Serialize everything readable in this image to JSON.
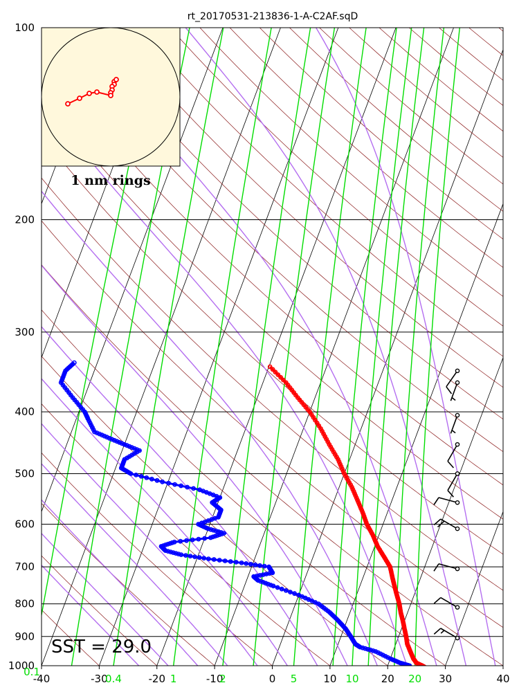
{
  "chart_data": {
    "type": "skew-t",
    "title": "rt_20170531-213836-1-A-C2AF.sqD",
    "xlim": [
      -40,
      40
    ],
    "ylim": [
      1000,
      100
    ],
    "y_scale": "log",
    "grid": true,
    "x_ticks": [
      "-40",
      "-30",
      "-20",
      "-10",
      "0",
      "10",
      "20",
      "30",
      "40"
    ],
    "y_ticks": [
      "100",
      "200",
      "300",
      "400",
      "500",
      "600",
      "700",
      "800",
      "900",
      "1000"
    ],
    "mixing_ratio_labels": [
      "0.1",
      "0.4",
      "1",
      "2",
      "5",
      "10",
      "20"
    ],
    "mixing_ratio_values": [
      0.1,
      0.4,
      1,
      2,
      5,
      10,
      20
    ],
    "annotation": "SST = 29.0",
    "hodograph_label": "1 nm rings",
    "colors": {
      "temperature": "#ff0000",
      "dewpoint": "#0000ff",
      "mixing_ratio": "#00dd00",
      "moist_adiabat": "#b46ef0",
      "dry_adiabat": "#8b1a1a",
      "isotherm": "#000000",
      "hodo_bg": "#fff8dc"
    },
    "series": [
      {
        "name": "temperature",
        "points": [
          [
            1010,
            27
          ],
          [
            1000,
            26
          ],
          [
            990,
            24.8
          ],
          [
            975,
            24
          ],
          [
            950,
            23
          ],
          [
            925,
            22
          ],
          [
            900,
            21.3
          ],
          [
            875,
            20.5
          ],
          [
            850,
            19.7
          ],
          [
            825,
            18.8
          ],
          [
            800,
            18
          ],
          [
            775,
            17
          ],
          [
            750,
            16
          ],
          [
            725,
            15
          ],
          [
            700,
            14
          ],
          [
            675,
            12.3
          ],
          [
            650,
            10.5
          ],
          [
            625,
            9
          ],
          [
            600,
            7.2
          ],
          [
            575,
            5.7
          ],
          [
            550,
            4
          ],
          [
            525,
            2.2
          ],
          [
            500,
            0
          ],
          [
            475,
            -2
          ],
          [
            450,
            -4.5
          ],
          [
            425,
            -7
          ],
          [
            400,
            -10
          ],
          [
            380,
            -13
          ],
          [
            360,
            -16
          ],
          [
            340,
            -19.8
          ]
        ]
      },
      {
        "name": "dewpoint",
        "points": [
          [
            1010,
            24
          ],
          [
            1000,
            23.8
          ],
          [
            990,
            22
          ],
          [
            975,
            20
          ],
          [
            950,
            17
          ],
          [
            935,
            14
          ],
          [
            925,
            13
          ],
          [
            900,
            11.7
          ],
          [
            875,
            10.3
          ],
          [
            850,
            8.5
          ],
          [
            825,
            6.5
          ],
          [
            800,
            4
          ],
          [
            775,
            0
          ],
          [
            750,
            -5
          ],
          [
            735,
            -8
          ],
          [
            725,
            -9
          ],
          [
            715,
            -6
          ],
          [
            700,
            -7
          ],
          [
            690,
            -12
          ],
          [
            680,
            -18
          ],
          [
            670,
            -23
          ],
          [
            660,
            -26
          ],
          [
            650,
            -27
          ],
          [
            640,
            -25
          ],
          [
            630,
            -19
          ],
          [
            620,
            -17
          ],
          [
            610,
            -20
          ],
          [
            600,
            -22
          ],
          [
            585,
            -19
          ],
          [
            570,
            -19
          ],
          [
            555,
            -21
          ],
          [
            545,
            -20
          ],
          [
            530,
            -24
          ],
          [
            515,
            -31
          ],
          [
            500,
            -37
          ],
          [
            490,
            -39
          ],
          [
            475,
            -39
          ],
          [
            460,
            -37
          ],
          [
            450,
            -40
          ],
          [
            440,
            -43
          ],
          [
            430,
            -46
          ],
          [
            410,
            -48
          ],
          [
            400,
            -49
          ],
          [
            380,
            -52
          ],
          [
            360,
            -55
          ],
          [
            345,
            -55
          ],
          [
            335,
            -54
          ]
        ]
      }
    ],
    "wind_barbs": [
      {
        "p": 905,
        "dir": 300,
        "spd": 15
      },
      {
        "p": 810,
        "dir": 300,
        "spd": 10
      },
      {
        "p": 705,
        "dir": 285,
        "spd": 10
      },
      {
        "p": 610,
        "dir": 300,
        "spd": 20
      },
      {
        "p": 555,
        "dir": 285,
        "spd": 10
      },
      {
        "p": 500,
        "dir": 210,
        "spd": 10
      },
      {
        "p": 450,
        "dir": 210,
        "spd": 10
      },
      {
        "p": 405,
        "dir": 200,
        "spd": 5
      },
      {
        "p": 360,
        "dir": 200,
        "spd": 5
      },
      {
        "p": 345,
        "dir": 215,
        "spd": 10
      }
    ],
    "hodograph": {
      "rings_nm": [
        1
      ],
      "points": [
        [
          0.05,
          -0.22
        ],
        [
          0.08,
          -0.25
        ],
        [
          0.05,
          -0.18
        ],
        [
          0.02,
          -0.15
        ],
        [
          0.02,
          -0.1
        ],
        [
          0.0,
          -0.06
        ],
        [
          0.0,
          -0.02
        ],
        [
          -0.2,
          -0.07
        ],
        [
          -0.31,
          -0.05
        ],
        [
          -0.45,
          0.02
        ],
        [
          -0.62,
          0.1
        ]
      ]
    }
  }
}
